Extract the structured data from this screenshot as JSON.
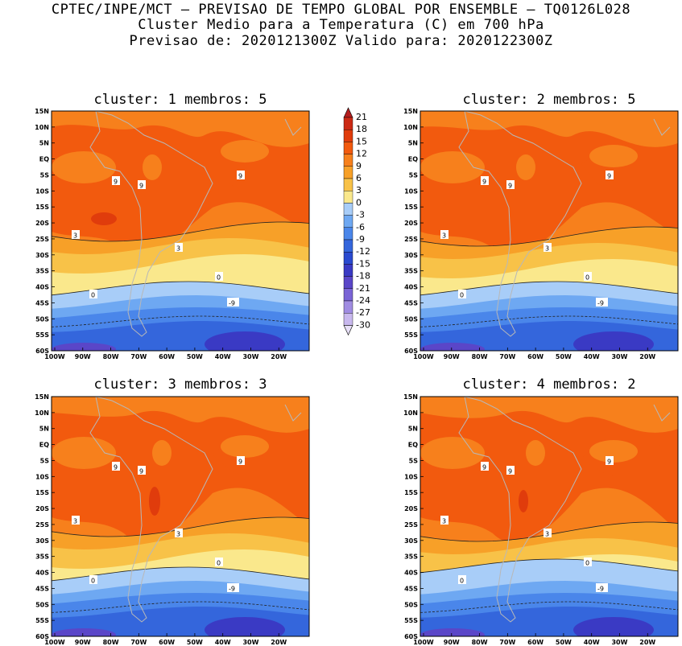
{
  "header": {
    "line1": "CPTEC/INPE/MCT – PREVISAO DE TEMPO GLOBAL POR ENSEMBLE – TQ0126L028",
    "line2": "Cluster Medio para a Temperatura (C) em 700 hPa",
    "line3": "Previsao de: 2020121300Z   Valido para: 2020122300Z"
  },
  "panels": [
    {
      "title": "cluster: 1  membros: 5",
      "variant": 1
    },
    {
      "title": "cluster: 2  membros: 5",
      "variant": 2
    },
    {
      "title": "cluster: 3  membros: 3",
      "variant": 3
    },
    {
      "title": "cluster: 4  membros: 2",
      "variant": 4
    }
  ],
  "lat_ticks": [
    "15N",
    "10N",
    "5N",
    "EQ",
    "5S",
    "10S",
    "15S",
    "20S",
    "25S",
    "30S",
    "35S",
    "40S",
    "45S",
    "50S",
    "55S",
    "60S"
  ],
  "lon_ticks": [
    "100W",
    "90W",
    "80W",
    "70W",
    "60W",
    "50W",
    "40W",
    "30W",
    "20W"
  ],
  "contour_labels": {
    "nine": "9",
    "three": "3",
    "zero": "0",
    "neg_nine": "-9"
  },
  "colorbar": {
    "labels": [
      "21",
      "18",
      "15",
      "12",
      "9",
      "6",
      "3",
      "0",
      "-3",
      "-6",
      "-9",
      "-12",
      "-15",
      "-18",
      "-21",
      "-24",
      "-27",
      "-30"
    ],
    "colors": [
      "#b41e1e",
      "#cc2a14",
      "#e03c0c",
      "#f25a0e",
      "#f7801c",
      "#f7a028",
      "#f8c248",
      "#fae88c",
      "#a8cdf8",
      "#6ea8f2",
      "#4a86ea",
      "#3466dc",
      "#2a4ad0",
      "#3a3ac4",
      "#5a46c8",
      "#7a64d6",
      "#a08ce2",
      "#c8b8ee",
      "#e8e0f8"
    ]
  },
  "colors": {
    "c_red": "#f25a0e",
    "c_orange": "#f7801c",
    "c_lorange": "#f7a028",
    "c_gold": "#f8c248",
    "c_yellow": "#fae88c",
    "c_lblue": "#a8cdf8",
    "c_mblue": "#6ea8f2",
    "c_blue": "#4a86ea",
    "c_dblue": "#3466dc",
    "c_navy": "#3a3ac4",
    "c_purple": "#5a46c8",
    "c_dred": "#e03c0c"
  }
}
